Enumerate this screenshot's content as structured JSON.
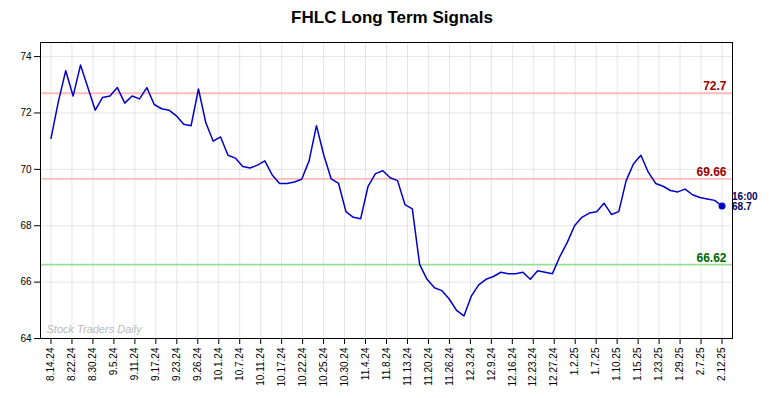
{
  "chart_data": {
    "type": "line",
    "title": "FHLC Long Term Signals",
    "color": "#0000cc",
    "x": [
      0,
      0.3516,
      0.7033,
      1.0549,
      1.4066,
      1.7582,
      2.1099,
      2.4615,
      2.8132,
      3.1648,
      3.5165,
      3.8681,
      4.2198,
      4.5714,
      4.9231,
      5.2747,
      5.6264,
      5.978,
      6.3297,
      6.6813,
      7.033,
      7.3846,
      7.7363,
      8.0879,
      8.4396,
      8.7912,
      9.1429,
      9.4945,
      9.8462,
      10.1978,
      10.5495,
      10.9011,
      11.2527,
      11.6044,
      11.956,
      12.3077,
      12.6593,
      13.011,
      13.3626,
      13.7143,
      14.0659,
      14.4176,
      14.7692,
      15.1209,
      15.4725,
      15.8242,
      16.1758,
      16.5275,
      16.8791,
      17.2308,
      17.5824,
      17.9341,
      18.2857,
      18.6374,
      18.989,
      19.3407,
      19.6923,
      20.044,
      20.3956,
      20.7473,
      21.0989,
      21.4505,
      21.8022,
      22.1538,
      22.5055,
      22.8571,
      23.2088,
      23.5604,
      23.9121,
      24.2637,
      24.6154,
      24.967,
      25.3187,
      25.6703,
      26.022,
      26.3736,
      26.7253,
      27.0769,
      27.4286,
      27.7802,
      28.1319,
      28.4835,
      28.8352,
      29.1868,
      29.5385,
      29.8901,
      30.2418,
      30.5934,
      30.9451,
      31.2967,
      31.6484,
      32
    ],
    "values": [
      71.1,
      72.4,
      73.5,
      72.6,
      73.7,
      72.9,
      72.1,
      72.55,
      72.6,
      72.9,
      72.35,
      72.6,
      72.5,
      72.9,
      72.3,
      72.15,
      72.1,
      71.9,
      71.6,
      71.55,
      72.85,
      71.65,
      71.0,
      71.15,
      70.5,
      70.4,
      70.1,
      70.05,
      70.15,
      70.3,
      69.8,
      69.5,
      69.5,
      69.55,
      69.65,
      70.3,
      71.55,
      70.5,
      69.66,
      69.5,
      68.5,
      68.3,
      68.25,
      69.4,
      69.85,
      69.95,
      69.7,
      69.6,
      68.75,
      68.6,
      66.62,
      66.1,
      65.8,
      65.7,
      65.4,
      65.0,
      64.8,
      65.5,
      65.9,
      66.1,
      66.2,
      66.35,
      66.3,
      66.3,
      66.35,
      66.1,
      66.4,
      66.35,
      66.3,
      66.9,
      67.4,
      68.0,
      68.3,
      68.45,
      68.5,
      68.8,
      68.4,
      68.5,
      69.6,
      70.2,
      70.5,
      69.9,
      69.5,
      69.4,
      69.25,
      69.2,
      69.3,
      69.1,
      69.0,
      68.95,
      68.9,
      68.7
    ],
    "xlim": [
      -0.5,
      32.5
    ],
    "xticks": [
      {
        "value": 0,
        "label": "8.14.24"
      },
      {
        "value": 1,
        "label": "8.22.24"
      },
      {
        "value": 2,
        "label": "8.30.24"
      },
      {
        "value": 3,
        "label": "9.5.24"
      },
      {
        "value": 4,
        "label": "9.11.24"
      },
      {
        "value": 5,
        "label": "9.17.24"
      },
      {
        "value": 6,
        "label": "9.23.24"
      },
      {
        "value": 7,
        "label": "9.26.24"
      },
      {
        "value": 8,
        "label": "10.1.24"
      },
      {
        "value": 9,
        "label": "10.7.24"
      },
      {
        "value": 10,
        "label": "10.11.24"
      },
      {
        "value": 11,
        "label": "10.17.24"
      },
      {
        "value": 12,
        "label": "10.22.24"
      },
      {
        "value": 13,
        "label": "10.25.24"
      },
      {
        "value": 14,
        "label": "10.30.24"
      },
      {
        "value": 15,
        "label": "11.4.24"
      },
      {
        "value": 16,
        "label": "11.8.24"
      },
      {
        "value": 17,
        "label": "11.13.24"
      },
      {
        "value": 18,
        "label": "11.20.24"
      },
      {
        "value": 19,
        "label": "11.26.24"
      },
      {
        "value": 20,
        "label": "12.3.24"
      },
      {
        "value": 21,
        "label": "12.9.24"
      },
      {
        "value": 22,
        "label": "12.16.24"
      },
      {
        "value": 23,
        "label": "12.23.24"
      },
      {
        "value": 24,
        "label": "12.27.24"
      },
      {
        "value": 25,
        "label": "1.2.25"
      },
      {
        "value": 26,
        "label": "1.7.25"
      },
      {
        "value": 27,
        "label": "1.10.25"
      },
      {
        "value": 28,
        "label": "1.15.25"
      },
      {
        "value": 29,
        "label": "1.23.25"
      },
      {
        "value": 30,
        "label": "1.29.25"
      },
      {
        "value": 31,
        "label": "2.7.25"
      },
      {
        "value": 32,
        "label": "2.12.25"
      }
    ],
    "ylim": [
      64,
      74.5
    ],
    "yticks": [
      64,
      66,
      68,
      70,
      72,
      74
    ],
    "grid": true,
    "hlines": [
      {
        "value": 72.7,
        "color": "#ffbbbb",
        "label_color": "#990000"
      },
      {
        "value": 69.66,
        "color": "#ffbbbb",
        "label_color": "#990000"
      },
      {
        "value": 66.62,
        "color": "#99dd99",
        "label_color": "#006600"
      }
    ],
    "annotation": "16:00\n68.7",
    "watermark": {
      "text": "Stock Traders Daily",
      "color": "#bbbbbb"
    }
  }
}
